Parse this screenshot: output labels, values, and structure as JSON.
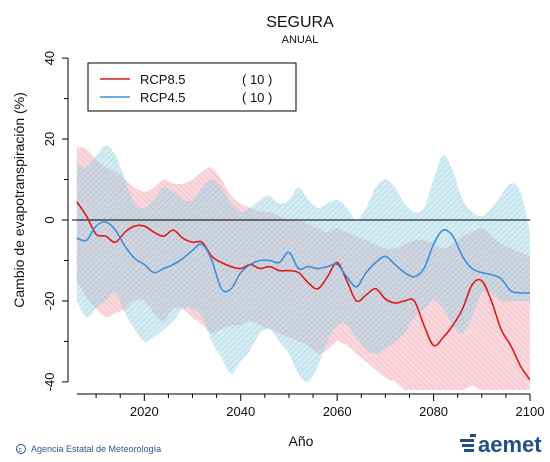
{
  "colors": {
    "rcp85_line": "#e01a1a",
    "rcp85_band": "#f4a9b4",
    "rcp45_line": "#3d8fd9",
    "rcp45_band": "#9fd7e6",
    "overlap_hatch": "#8fa3c4",
    "zero_line": "#000000",
    "credit": "#2a5a8c",
    "logo": "#1f4f86"
  },
  "credit": "Agencia Estatal de Meteorología",
  "logo": "aemet",
  "chart_data": {
    "type": "line",
    "title": "SEGURA",
    "subtitle": "ANUAL",
    "xlabel": "Año",
    "ylabel": "Cambio de evapotranspiración (%)",
    "xlim": [
      2005,
      2100
    ],
    "ylim": [
      -42,
      42
    ],
    "xticks": [
      2020,
      2040,
      2060,
      2080,
      2100
    ],
    "yticks": [
      -40,
      -20,
      0,
      20,
      40
    ],
    "legend_position": "top-left",
    "series": [
      {
        "name": "RCP8.5",
        "count": "( 10 )",
        "x": [
          2006,
          2008,
          2010,
          2012,
          2014,
          2016,
          2018,
          2020,
          2022,
          2024,
          2026,
          2028,
          2030,
          2032,
          2034,
          2036,
          2038,
          2040,
          2042,
          2044,
          2046,
          2048,
          2050,
          2052,
          2054,
          2056,
          2058,
          2060,
          2062,
          2064,
          2066,
          2068,
          2070,
          2072,
          2074,
          2076,
          2078,
          2080,
          2082,
          2084,
          2086,
          2088,
          2090,
          2092,
          2094,
          2096,
          2098,
          2100
        ],
        "y": [
          4.5,
          1,
          -3.5,
          -4,
          -5.5,
          -3,
          -1.5,
          -1.5,
          -3,
          -4,
          -2.5,
          -4.5,
          -5.5,
          -5.5,
          -9,
          -10.5,
          -11.5,
          -12,
          -11,
          -12,
          -11.5,
          -12.5,
          -12.5,
          -13,
          -15.5,
          -17,
          -14,
          -10.5,
          -15,
          -20,
          -18.5,
          -17,
          -19.5,
          -20.5,
          -20,
          -20,
          -26,
          -31,
          -29,
          -26,
          -22,
          -16,
          -15,
          -20,
          -27,
          -31,
          -36,
          -39.5
        ],
        "upper": [
          18,
          17.5,
          15,
          13,
          12,
          10,
          8,
          7,
          8,
          10,
          9,
          9,
          10,
          12,
          13,
          10,
          6,
          4,
          3,
          2,
          2,
          1,
          0,
          0,
          -1,
          -2,
          -3,
          -2,
          -3,
          -4,
          -5,
          -6,
          -7,
          -7,
          -6,
          -5,
          -5,
          -6,
          -7,
          -6,
          -4,
          -3,
          -2,
          -4,
          -6,
          -7,
          -8,
          -9
        ],
        "lower": [
          -15,
          -19,
          -22,
          -24,
          -23,
          -22,
          -20,
          -20,
          -23,
          -25,
          -22,
          -22,
          -24,
          -26,
          -28,
          -27,
          -26,
          -26,
          -25,
          -26,
          -27,
          -28,
          -29,
          -30,
          -31,
          -33,
          -32,
          -30,
          -31,
          -33,
          -35,
          -37,
          -39,
          -40,
          -42,
          -42,
          -42,
          -42,
          -42,
          -42,
          -42,
          -41,
          -42,
          -42,
          -42,
          -42,
          -42,
          -42
        ]
      },
      {
        "name": "RCP4.5",
        "count": "( 10 )",
        "x": [
          2006,
          2008,
          2010,
          2012,
          2014,
          2016,
          2018,
          2020,
          2022,
          2024,
          2026,
          2028,
          2030,
          2032,
          2034,
          2036,
          2038,
          2040,
          2042,
          2044,
          2046,
          2048,
          2050,
          2052,
          2054,
          2056,
          2058,
          2060,
          2062,
          2064,
          2066,
          2068,
          2070,
          2072,
          2074,
          2076,
          2078,
          2080,
          2082,
          2084,
          2086,
          2088,
          2090,
          2092,
          2094,
          2096,
          2098,
          2100
        ],
        "y": [
          -4.5,
          -5,
          -1.5,
          -0.5,
          -2.5,
          -6.5,
          -9.5,
          -11,
          -13,
          -12,
          -11,
          -9.5,
          -7.5,
          -6,
          -10,
          -17,
          -17,
          -13,
          -11,
          -10,
          -10,
          -10.5,
          -8,
          -12,
          -11.5,
          -12,
          -11.5,
          -11,
          -14,
          -16.5,
          -13,
          -10.5,
          -9,
          -11,
          -13,
          -14,
          -12,
          -6,
          -2.5,
          -4,
          -9,
          -12,
          -13,
          -13.5,
          -14.5,
          -17.5,
          -18,
          -18
        ],
        "upper": [
          14,
          13,
          16,
          18.5,
          16,
          10,
          4,
          3,
          5,
          8,
          7,
          5,
          5,
          8,
          10,
          8,
          4,
          2,
          3,
          5,
          6,
          4,
          5,
          8,
          5,
          3,
          4,
          5,
          3,
          0,
          3,
          8,
          10,
          8,
          4,
          2,
          3,
          10,
          16,
          12,
          5,
          2,
          1,
          3,
          6,
          9,
          7,
          -3
        ],
        "lower": [
          -20,
          -24,
          -22,
          -20,
          -18,
          -23,
          -27,
          -30,
          -29,
          -27,
          -25,
          -22,
          -22,
          -24,
          -30,
          -34,
          -38,
          -35,
          -32,
          -28,
          -27,
          -30,
          -33,
          -38,
          -40,
          -36,
          -30,
          -26,
          -26,
          -29,
          -32,
          -33,
          -32,
          -30,
          -28,
          -24,
          -22,
          -20,
          -22,
          -26,
          -28,
          -24,
          -18,
          -18,
          -20,
          -20,
          -20,
          -20
        ]
      }
    ]
  }
}
